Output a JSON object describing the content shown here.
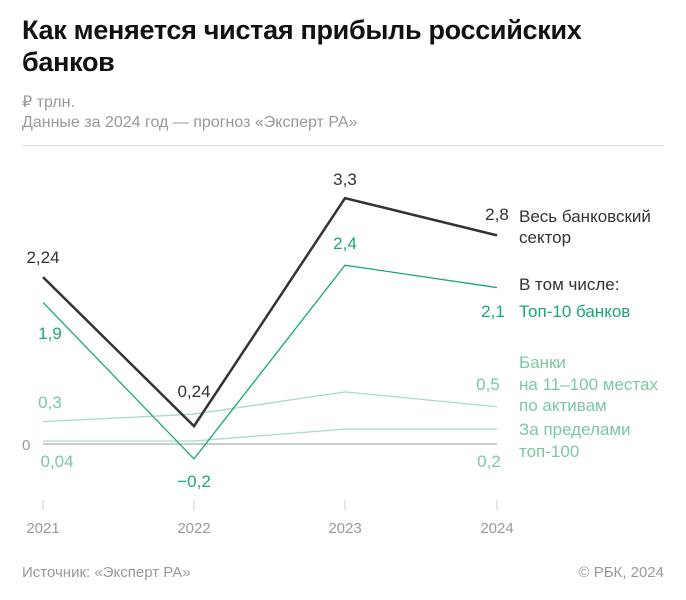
{
  "title": "Как меняется чистая прибыль российских банков",
  "unit": "₽ трлн.",
  "note": "Данные за 2024 год — прогноз «Эксперт РА»",
  "source": "Источник: «Эксперт РА»",
  "copyright": "© РБК, 2024",
  "colors": {
    "total": "#333333",
    "top10": "#1aa77a",
    "light": "#a6dcc6",
    "light_label": "#7cc6a6",
    "axis": "#bbbbbb"
  },
  "chart_data": {
    "type": "line",
    "categories": [
      "2021",
      "2022",
      "2023",
      "2024"
    ],
    "zero_label": "0",
    "grid": false,
    "series": [
      {
        "name": "Весь банковский сектор",
        "values": [
          2.24,
          0.24,
          3.3,
          2.8
        ],
        "labels": [
          "2,24",
          "0,24",
          "3,3",
          "2,8"
        ]
      },
      {
        "name": "В том числе: Топ-10 банков",
        "header": "В том числе:",
        "short": "Топ-10 банков",
        "values": [
          1.9,
          -0.2,
          2.4,
          2.1
        ],
        "labels": [
          "1,9",
          "−0,2",
          "2,4",
          "2,1"
        ]
      },
      {
        "name": "Банки на 11–100 местах по активам",
        "values": [
          0.3,
          0.4,
          0.7,
          0.5
        ],
        "labels": [
          "0,3",
          "0,5"
        ]
      },
      {
        "name": "За пределами топ-100",
        "values": [
          0.04,
          0.04,
          0.2,
          0.2
        ],
        "labels": [
          "0,04",
          "0,2"
        ]
      }
    ]
  }
}
